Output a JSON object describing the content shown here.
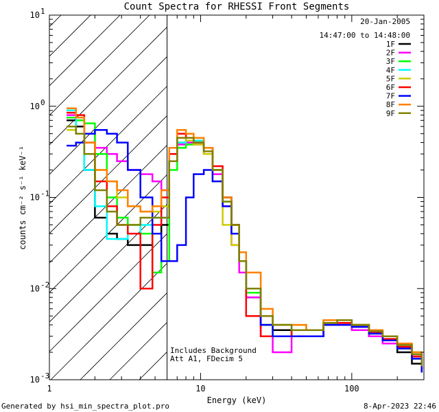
{
  "chart_data": {
    "type": "line",
    "title": "Count Spectra for RHESSI Front Segments",
    "xlabel": "Energy (keV)",
    "ylabel": "counts cm⁻² s⁻¹ keV⁻¹",
    "xscale": "log",
    "yscale": "log",
    "xlim": [
      1,
      300
    ],
    "ylim": [
      0.001,
      10
    ],
    "xticks": [
      {
        "value": 1,
        "label": "1"
      },
      {
        "value": 10,
        "label": "10"
      },
      {
        "value": 100,
        "label": "100"
      }
    ],
    "yticks": [
      {
        "value": 0.001,
        "base": "10",
        "exp": "-3"
      },
      {
        "value": 0.01,
        "base": "10",
        "exp": "-2"
      },
      {
        "value": 0.1,
        "base": "10",
        "exp": "-1"
      },
      {
        "value": 1,
        "base": "10",
        "exp": "0"
      },
      {
        "value": 10,
        "base": "10",
        "exp": "1"
      }
    ],
    "hatched_region": {
      "from": 1,
      "to": 6,
      "meaning": "excluded low-energy range"
    },
    "date": "20-Jan-2005",
    "time_range": "14:47:00 to 14:48:00",
    "annotations": [
      "Includes Background",
      "Att A1, FDecim 5"
    ],
    "footer_left": "Generated by hsi_min_spectra_plot.pro",
    "footer_right": "8-Apr-2023 22:46",
    "series": [
      {
        "name": "1F",
        "color": "#000000",
        "x": [
          1.3,
          1.5,
          1.7,
          2.0,
          2.4,
          2.8,
          3.3,
          4.0,
          4.8,
          5.5,
          6.2,
          7.0,
          8.0,
          9.0,
          10.5,
          12,
          14,
          16,
          18,
          20,
          25,
          30,
          40,
          50,
          65,
          80,
          100,
          130,
          160,
          200,
          250,
          290
        ],
        "y": [
          0.7,
          0.6,
          0.2,
          0.06,
          0.04,
          0.035,
          0.03,
          0.03,
          0.04,
          0.05,
          0.25,
          0.4,
          0.42,
          0.4,
          0.35,
          0.2,
          0.1,
          0.05,
          0.02,
          0.008,
          0.004,
          0.0035,
          0.003,
          0.003,
          0.004,
          0.004,
          0.0038,
          0.003,
          0.0025,
          0.002,
          0.0015,
          0.0012
        ]
      },
      {
        "name": "2F",
        "color": "#ff00ff",
        "x": [
          1.3,
          1.5,
          1.7,
          2.0,
          2.4,
          2.8,
          3.3,
          4.0,
          4.8,
          5.5,
          6.2,
          7.0,
          8.0,
          9.0,
          10.5,
          12,
          14,
          16,
          18,
          20,
          25,
          30,
          40,
          50,
          65,
          80,
          100,
          130,
          160,
          200,
          250,
          290
        ],
        "y": [
          0.8,
          0.75,
          0.5,
          0.35,
          0.3,
          0.25,
          0.2,
          0.18,
          0.15,
          0.12,
          0.25,
          0.38,
          0.4,
          0.38,
          0.3,
          0.18,
          0.08,
          0.03,
          0.015,
          0.008,
          0.003,
          0.002,
          0.003,
          0.003,
          0.004,
          0.004,
          0.0035,
          0.003,
          0.0025,
          0.0022,
          0.0018,
          0.0013
        ]
      },
      {
        "name": "3F",
        "color": "#00ff00",
        "x": [
          1.3,
          1.5,
          1.7,
          2.0,
          2.4,
          2.8,
          3.3,
          4.0,
          4.8,
          5.5,
          6.2,
          7.0,
          8.0,
          9.0,
          10.5,
          12,
          14,
          16,
          18,
          20,
          25,
          30,
          40,
          50,
          65,
          80,
          100,
          130,
          160,
          200,
          250,
          290
        ],
        "y": [
          0.75,
          0.7,
          0.65,
          0.3,
          0.1,
          0.06,
          0.05,
          0.04,
          0.015,
          0.02,
          0.2,
          0.35,
          0.38,
          0.4,
          0.35,
          0.2,
          0.09,
          0.04,
          0.02,
          0.009,
          0.004,
          0.003,
          0.0035,
          0.0035,
          0.004,
          0.0045,
          0.004,
          0.0032,
          0.0027,
          0.0022,
          0.0017,
          0.0013
        ]
      },
      {
        "name": "4F",
        "color": "#00ffff",
        "x": [
          1.3,
          1.5,
          1.7,
          2.0,
          2.4,
          2.8,
          3.3,
          4.0,
          4.8,
          5.5,
          6.2,
          7.0,
          8.0,
          9.0,
          10.5,
          12,
          14,
          16,
          18,
          20,
          25,
          30,
          40,
          50,
          65,
          80,
          100,
          130,
          160,
          200,
          250,
          290
        ],
        "y": [
          0.9,
          0.5,
          0.2,
          0.08,
          0.035,
          0.035,
          0.04,
          0.05,
          0.06,
          0.06,
          0.25,
          0.4,
          0.45,
          0.42,
          0.35,
          0.2,
          0.1,
          0.05,
          0.02,
          0.01,
          0.005,
          0.004,
          0.0035,
          0.0035,
          0.0045,
          0.0045,
          0.004,
          0.0035,
          0.003,
          0.0025,
          0.002,
          0.0015
        ]
      },
      {
        "name": "5F",
        "color": "#cccc00",
        "x": [
          1.3,
          1.5,
          1.7,
          2.0,
          2.4,
          2.8,
          3.3,
          4.0,
          4.8,
          5.5,
          6.2,
          7.0,
          8.0,
          9.0,
          10.5,
          12,
          14,
          16,
          18,
          20,
          25,
          30,
          40,
          50,
          65,
          80,
          100,
          130,
          160,
          200,
          250,
          290
        ],
        "y": [
          0.55,
          0.5,
          0.4,
          0.2,
          0.15,
          0.1,
          0.08,
          0.07,
          0.07,
          0.08,
          0.3,
          0.45,
          0.42,
          0.38,
          0.3,
          0.15,
          0.05,
          0.03,
          0.02,
          0.01,
          0.005,
          0.004,
          0.004,
          0.0035,
          0.0045,
          0.0045,
          0.004,
          0.0035,
          0.003,
          0.0025,
          0.002,
          0.0015
        ]
      },
      {
        "name": "6F",
        "color": "#ff0000",
        "x": [
          1.3,
          1.5,
          1.7,
          2.0,
          2.4,
          2.8,
          3.3,
          4.0,
          4.8,
          5.5,
          6.2,
          7.0,
          8.0,
          9.0,
          10.5,
          12,
          14,
          16,
          18,
          20,
          25,
          30,
          40,
          50,
          65,
          80,
          100,
          130,
          160,
          200,
          250,
          290
        ],
        "y": [
          0.85,
          0.8,
          0.4,
          0.15,
          0.08,
          0.05,
          0.04,
          0.01,
          0.05,
          0.1,
          0.3,
          0.5,
          0.45,
          0.4,
          0.35,
          0.22,
          0.1,
          0.05,
          0.02,
          0.005,
          0.003,
          0.003,
          0.0035,
          0.0035,
          0.004,
          0.0042,
          0.004,
          0.0033,
          0.0028,
          0.0023,
          0.0018,
          0.0013
        ]
      },
      {
        "name": "7F",
        "color": "#0000ff",
        "x": [
          1.3,
          1.5,
          1.7,
          2.0,
          2.4,
          2.8,
          3.3,
          4.0,
          4.8,
          5.5,
          6.2,
          7.0,
          8.0,
          9.0,
          10.5,
          12,
          14,
          16,
          18,
          20,
          25,
          30,
          40,
          50,
          65,
          80,
          100,
          130,
          160,
          200,
          250,
          290
        ],
        "y": [
          0.37,
          0.4,
          0.5,
          0.55,
          0.5,
          0.4,
          0.2,
          0.1,
          0.04,
          0.02,
          0.02,
          0.03,
          0.1,
          0.18,
          0.2,
          0.15,
          0.08,
          0.04,
          0.02,
          0.01,
          0.004,
          0.003,
          0.003,
          0.003,
          0.004,
          0.004,
          0.0038,
          0.0032,
          0.0027,
          0.0022,
          0.0017,
          0.0012
        ]
      },
      {
        "name": "8F",
        "color": "#ff8000",
        "x": [
          1.3,
          1.5,
          1.7,
          2.0,
          2.4,
          2.8,
          3.3,
          4.0,
          4.8,
          5.5,
          6.2,
          7.0,
          8.0,
          9.0,
          10.5,
          12,
          14,
          16,
          18,
          20,
          25,
          30,
          40,
          50,
          65,
          80,
          100,
          130,
          160,
          200,
          250,
          290
        ],
        "y": [
          0.95,
          0.75,
          0.4,
          0.2,
          0.15,
          0.12,
          0.08,
          0.07,
          0.08,
          0.12,
          0.35,
          0.55,
          0.5,
          0.45,
          0.35,
          0.2,
          0.1,
          0.05,
          0.025,
          0.015,
          0.006,
          0.004,
          0.004,
          0.0035,
          0.0045,
          0.0045,
          0.004,
          0.0035,
          0.003,
          0.0025,
          0.002,
          0.0015
        ]
      },
      {
        "name": "9F",
        "color": "#808000",
        "x": [
          1.3,
          1.5,
          1.7,
          2.0,
          2.4,
          2.8,
          3.3,
          4.0,
          4.8,
          5.5,
          6.2,
          7.0,
          8.0,
          9.0,
          10.5,
          12,
          14,
          16,
          18,
          20,
          25,
          30,
          40,
          50,
          65,
          80,
          100,
          130,
          160,
          200,
          250,
          290
        ],
        "y": [
          0.6,
          0.5,
          0.3,
          0.12,
          0.07,
          0.05,
          0.05,
          0.06,
          0.06,
          0.06,
          0.25,
          0.45,
          0.45,
          0.4,
          0.32,
          0.2,
          0.09,
          0.05,
          0.02,
          0.01,
          0.005,
          0.004,
          0.0035,
          0.0035,
          0.0042,
          0.0045,
          0.004,
          0.0034,
          0.003,
          0.0024,
          0.0019,
          0.0014
        ]
      }
    ]
  }
}
